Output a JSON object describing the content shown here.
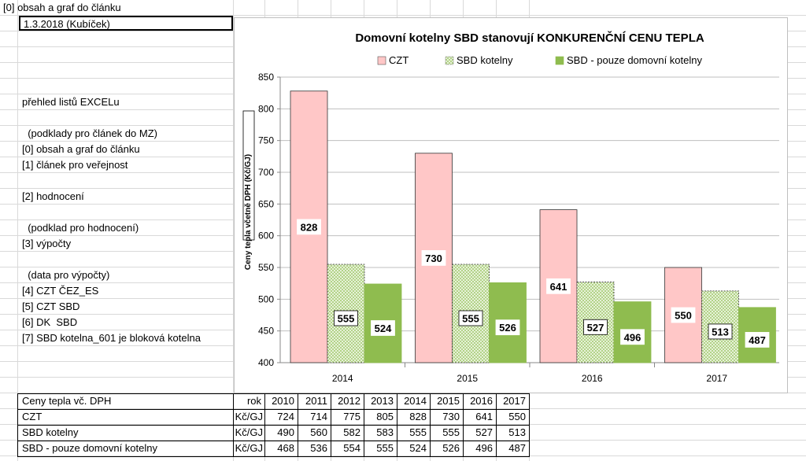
{
  "sheet": {
    "a1": "[0] obsah a graf do článku",
    "date_cell": "1.3.2018 (Kubíček)",
    "overview_title": "přehled listů EXCELu",
    "list": [
      "  (podklady pro článek do MZ)",
      "[0] obsah a graf do článku",
      "[1] článek pro veřejnost",
      "",
      "[2] hodnocení",
      "",
      "  (podklad pro hodnocení)",
      "[3] výpočty",
      "",
      "  (data pro výpočty)",
      "[4] CZT ČEZ_ES",
      "[5] CZT SBD",
      "[6] DK  SBD",
      "[7] SBD kotelna_601 je bloková kotelna"
    ]
  },
  "table": {
    "header_label": "Ceny tepla vč. DPH",
    "unit_header": "rok",
    "years": [
      "2010",
      "2011",
      "2012",
      "2013",
      "2014",
      "2015",
      "2016",
      "2017"
    ],
    "rows": [
      {
        "label": "CZT",
        "unit": "Kč/GJ",
        "values": [
          "724",
          "714",
          "775",
          "805",
          "828",
          "730",
          "641",
          "550"
        ]
      },
      {
        "label": "SBD kotelny",
        "unit": "Kč/GJ",
        "values": [
          "490",
          "560",
          "582",
          "583",
          "555",
          "555",
          "527",
          "513"
        ]
      },
      {
        "label": "SBD - pouze domovní kotelny",
        "unit": "Kč/GJ",
        "values": [
          "468",
          "536",
          "554",
          "555",
          "524",
          "526",
          "496",
          "487"
        ]
      }
    ]
  },
  "chart_data": {
    "type": "bar",
    "title": "Domovní kotelny SBD stanovují   KONKURENČNÍ CENU TEPLA",
    "ylabel": "Ceny tepla včetně DPH (Kč/GJ)",
    "xlabel": "",
    "ylim": [
      400,
      850
    ],
    "yticks": [
      "400",
      "450",
      "500",
      "550",
      "600",
      "650",
      "700",
      "750",
      "800",
      "850"
    ],
    "categories": [
      "2014",
      "2015",
      "2016",
      "2017"
    ],
    "series": [
      {
        "name": "CZT",
        "values": [
          828,
          730,
          641,
          550
        ],
        "labels": [
          "828",
          "730",
          "641",
          "550"
        ],
        "color": "#ffc7c7"
      },
      {
        "name": "SBD kotelny",
        "values": [
          555,
          555,
          527,
          513
        ],
        "labels": [
          "555",
          "555",
          "527",
          "513"
        ],
        "color": "#d8ecc0"
      },
      {
        "name": "SBD - pouze domovní kotelny",
        "values": [
          524,
          526,
          496,
          487
        ],
        "labels": [
          "524",
          "526",
          "496",
          "487"
        ],
        "color": "#8fbc4f"
      }
    ],
    "legend": "top"
  }
}
